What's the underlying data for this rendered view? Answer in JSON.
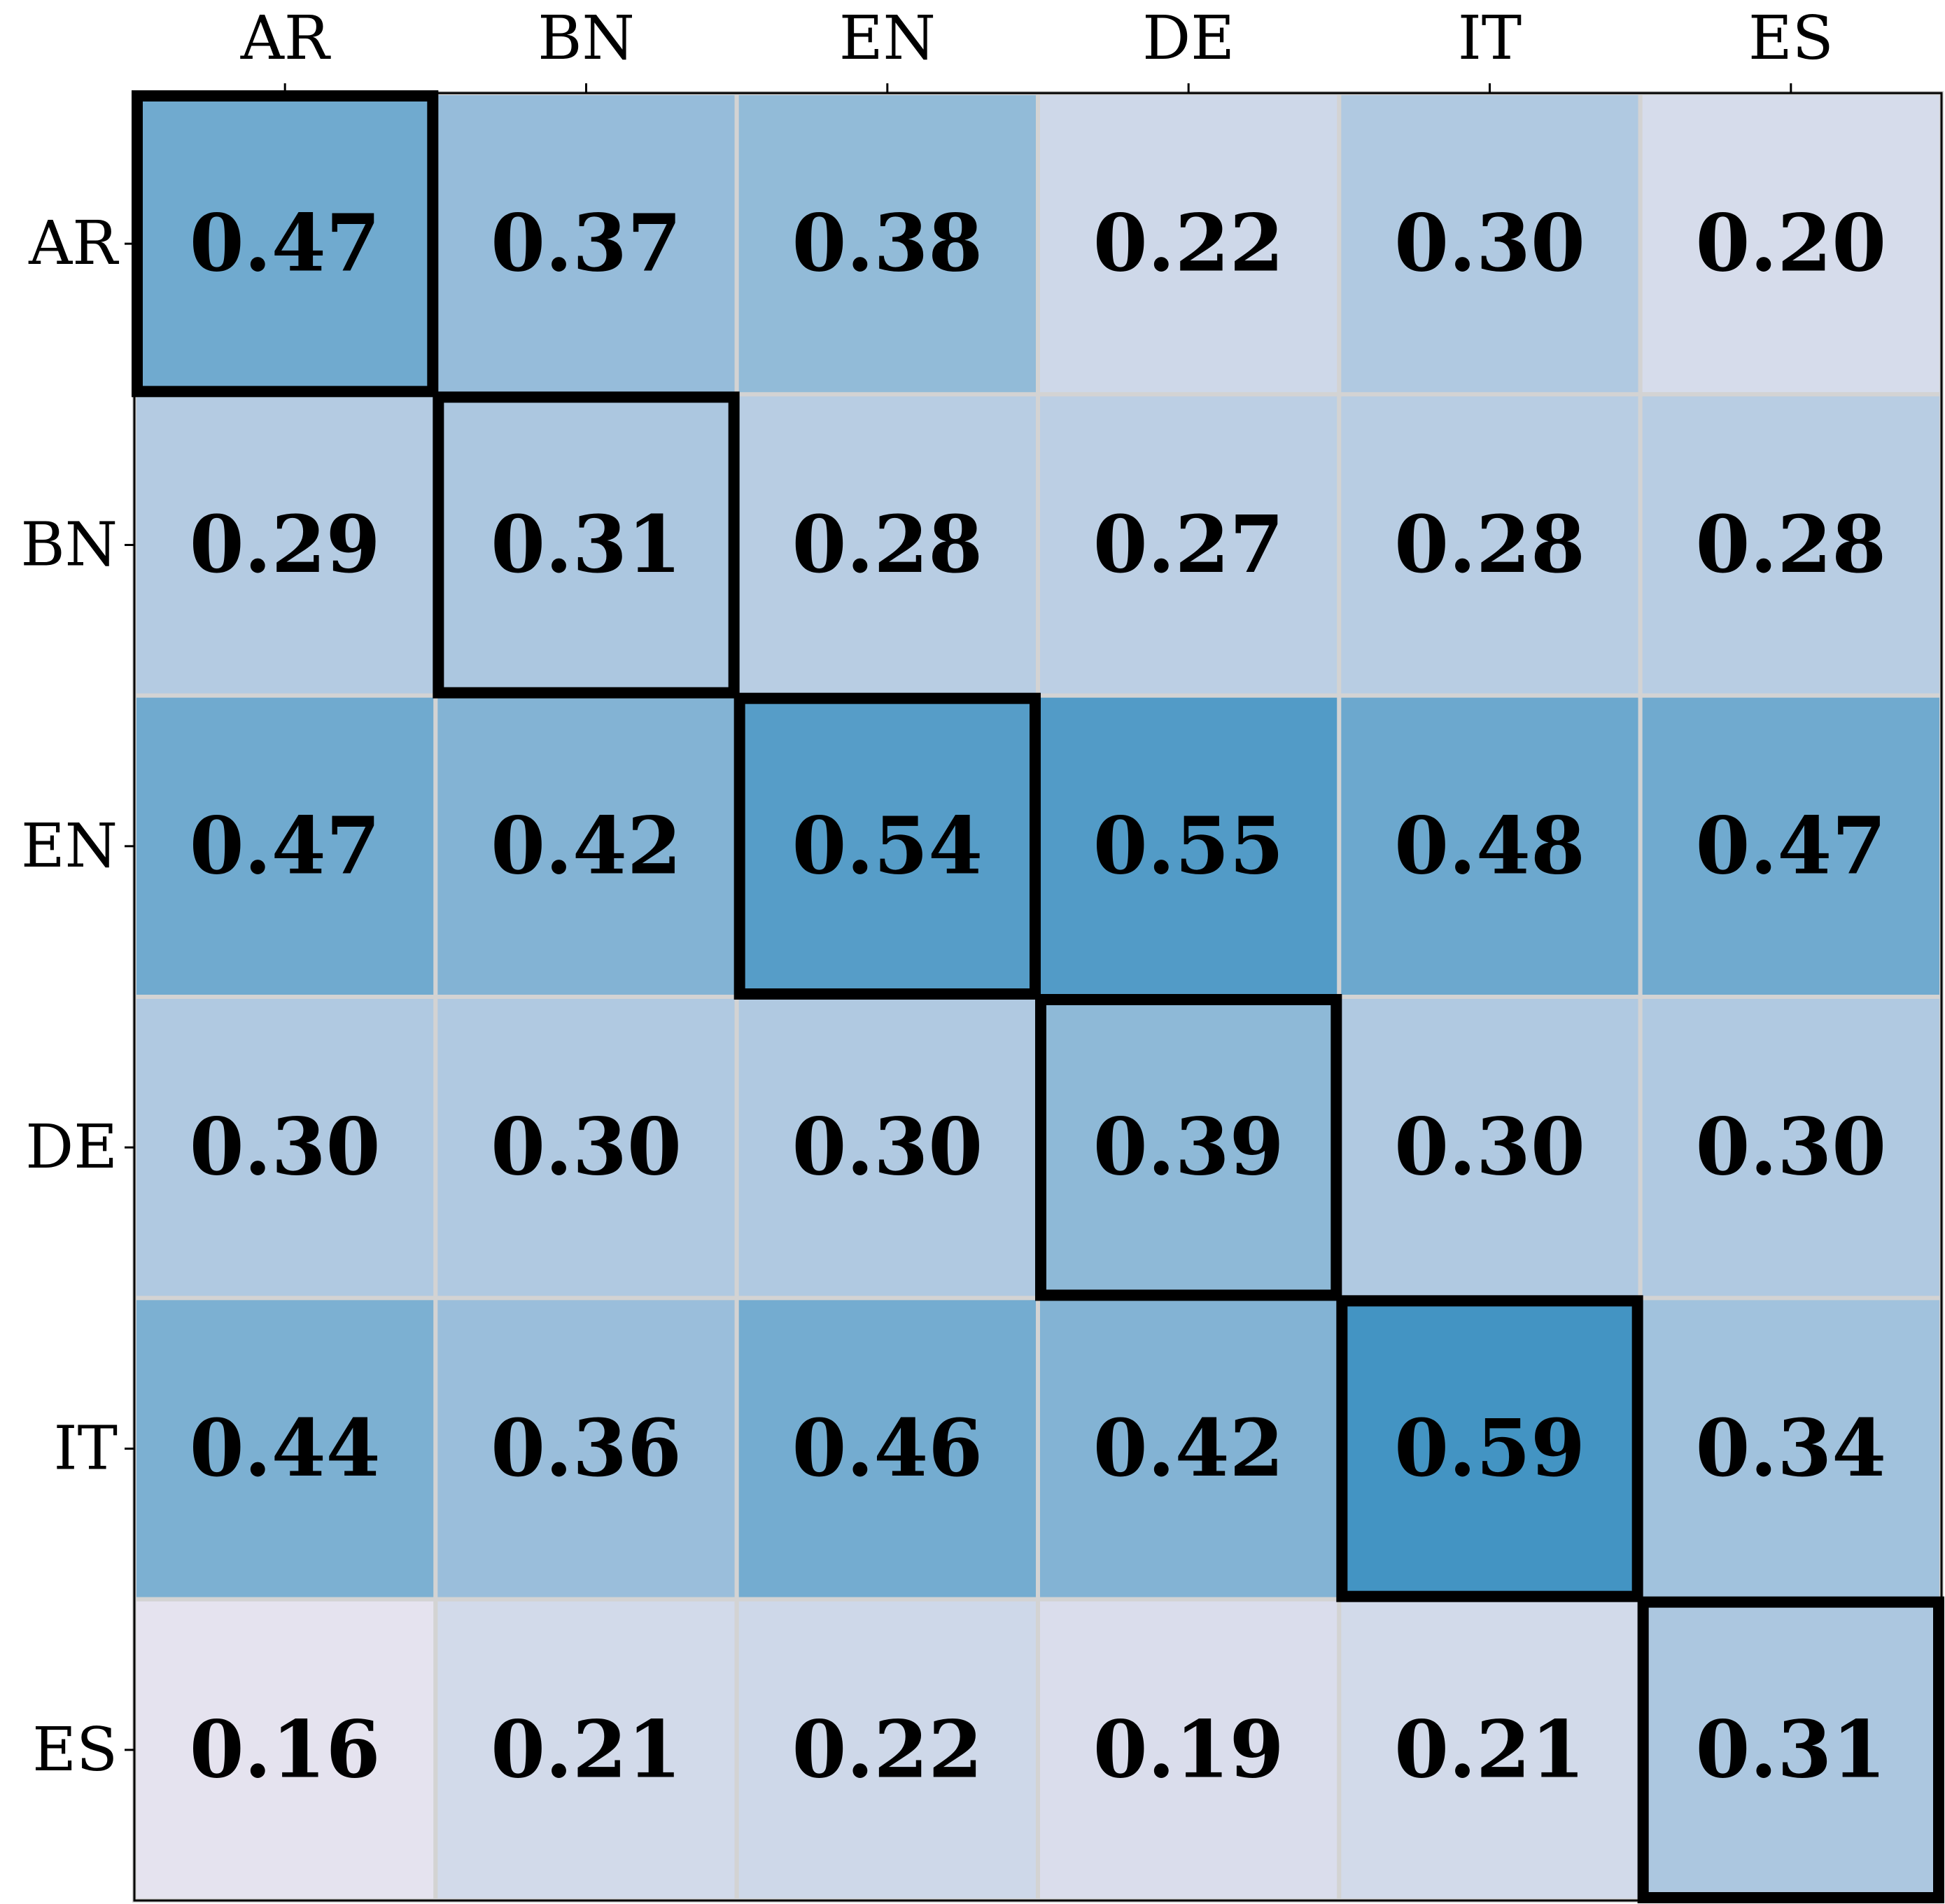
{
  "chart_data": {
    "type": "heatmap",
    "x_categories": [
      "AR",
      "BN",
      "EN",
      "DE",
      "IT",
      "ES"
    ],
    "y_categories": [
      "AR",
      "BN",
      "EN",
      "DE",
      "IT",
      "ES"
    ],
    "values": [
      [
        0.47,
        0.37,
        0.38,
        0.22,
        0.3,
        0.2
      ],
      [
        0.29,
        0.31,
        0.28,
        0.27,
        0.28,
        0.28
      ],
      [
        0.47,
        0.42,
        0.54,
        0.55,
        0.48,
        0.47
      ],
      [
        0.3,
        0.3,
        0.3,
        0.39,
        0.3,
        0.3
      ],
      [
        0.44,
        0.36,
        0.46,
        0.42,
        0.59,
        0.34
      ],
      [
        0.16,
        0.21,
        0.22,
        0.19,
        0.21,
        0.31
      ]
    ],
    "value_labels": [
      [
        "0.47",
        "0.37",
        "0.38",
        "0.22",
        "0.30",
        "0.20"
      ],
      [
        "0.29",
        "0.31",
        "0.28",
        "0.27",
        "0.28",
        "0.28"
      ],
      [
        "0.47",
        "0.42",
        "0.54",
        "0.55",
        "0.48",
        "0.47"
      ],
      [
        "0.30",
        "0.30",
        "0.30",
        "0.39",
        "0.30",
        "0.30"
      ],
      [
        "0.44",
        "0.36",
        "0.46",
        "0.42",
        "0.59",
        "0.34"
      ],
      [
        "0.16",
        "0.21",
        "0.22",
        "0.19",
        "0.21",
        "0.31"
      ]
    ],
    "colormap": [
      "#e5e3ef",
      "#4394c3"
    ],
    "highlight_diagonal": true,
    "x_axis_position": "top"
  }
}
